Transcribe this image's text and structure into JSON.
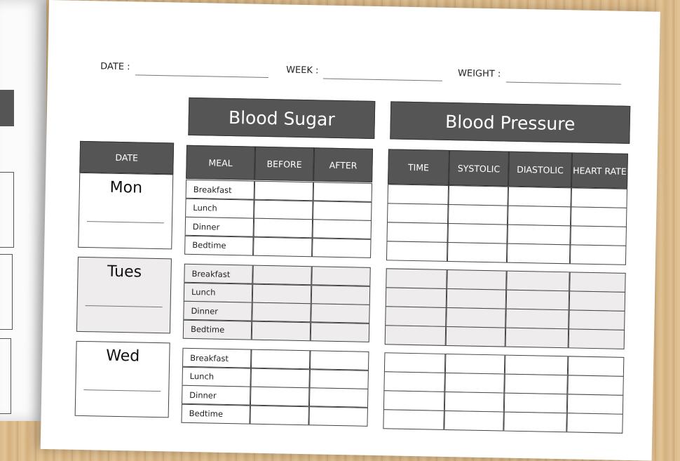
{
  "header": {
    "fields": [
      "DATE :",
      "WEEK :",
      "WEIGHT :"
    ]
  },
  "date_column": "DATE",
  "blood_sugar": {
    "title": "Blood Sugar",
    "columns": [
      "MEAL",
      "BEFORE",
      "AFTER"
    ]
  },
  "blood_pressure": {
    "title": "Blood Pressure",
    "columns": [
      "TIME",
      "SYSTOLIC",
      "DIASTOLIC",
      "HEART RATE"
    ]
  },
  "days": [
    {
      "name": "Mon",
      "meals": [
        "Breakfast",
        "Lunch",
        "Dinner",
        "Bedtime"
      ]
    },
    {
      "name": "Tues",
      "meals": [
        "Breakfast",
        "Lunch",
        "Dinner",
        "Bedtime"
      ]
    },
    {
      "name": "Wed",
      "meals": [
        "Breakfast",
        "Lunch",
        "Dinner",
        "Bedtime"
      ]
    }
  ]
}
